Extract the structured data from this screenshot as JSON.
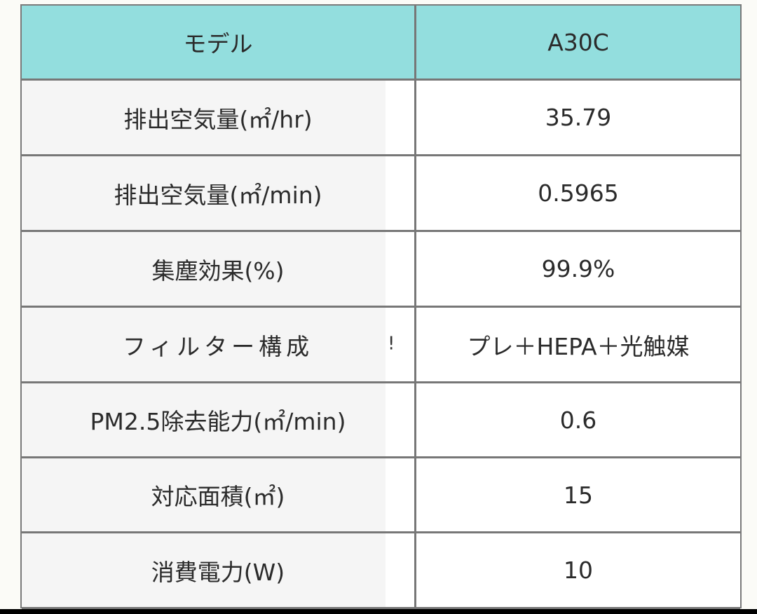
{
  "table": {
    "header": {
      "label": "モデル",
      "value": "A30C"
    },
    "accent_color": "#93DEDE",
    "rows": [
      {
        "label": "排出空気量(㎡/hr)",
        "value": "35.79"
      },
      {
        "label": "排出空気量(㎡/min)",
        "value": "0.5965"
      },
      {
        "label": "集塵効果(%)",
        "value": "99.9%"
      },
      {
        "label": "フィルター構成",
        "value": "プレ＋HEPA＋光触媒",
        "artifact": "!"
      },
      {
        "label": "PM2.5除去能力(㎡/min)",
        "value": "0.6"
      },
      {
        "label": "対応面積(㎡)",
        "value": "15"
      },
      {
        "label": "消費電力(W)",
        "value": "10"
      }
    ]
  }
}
